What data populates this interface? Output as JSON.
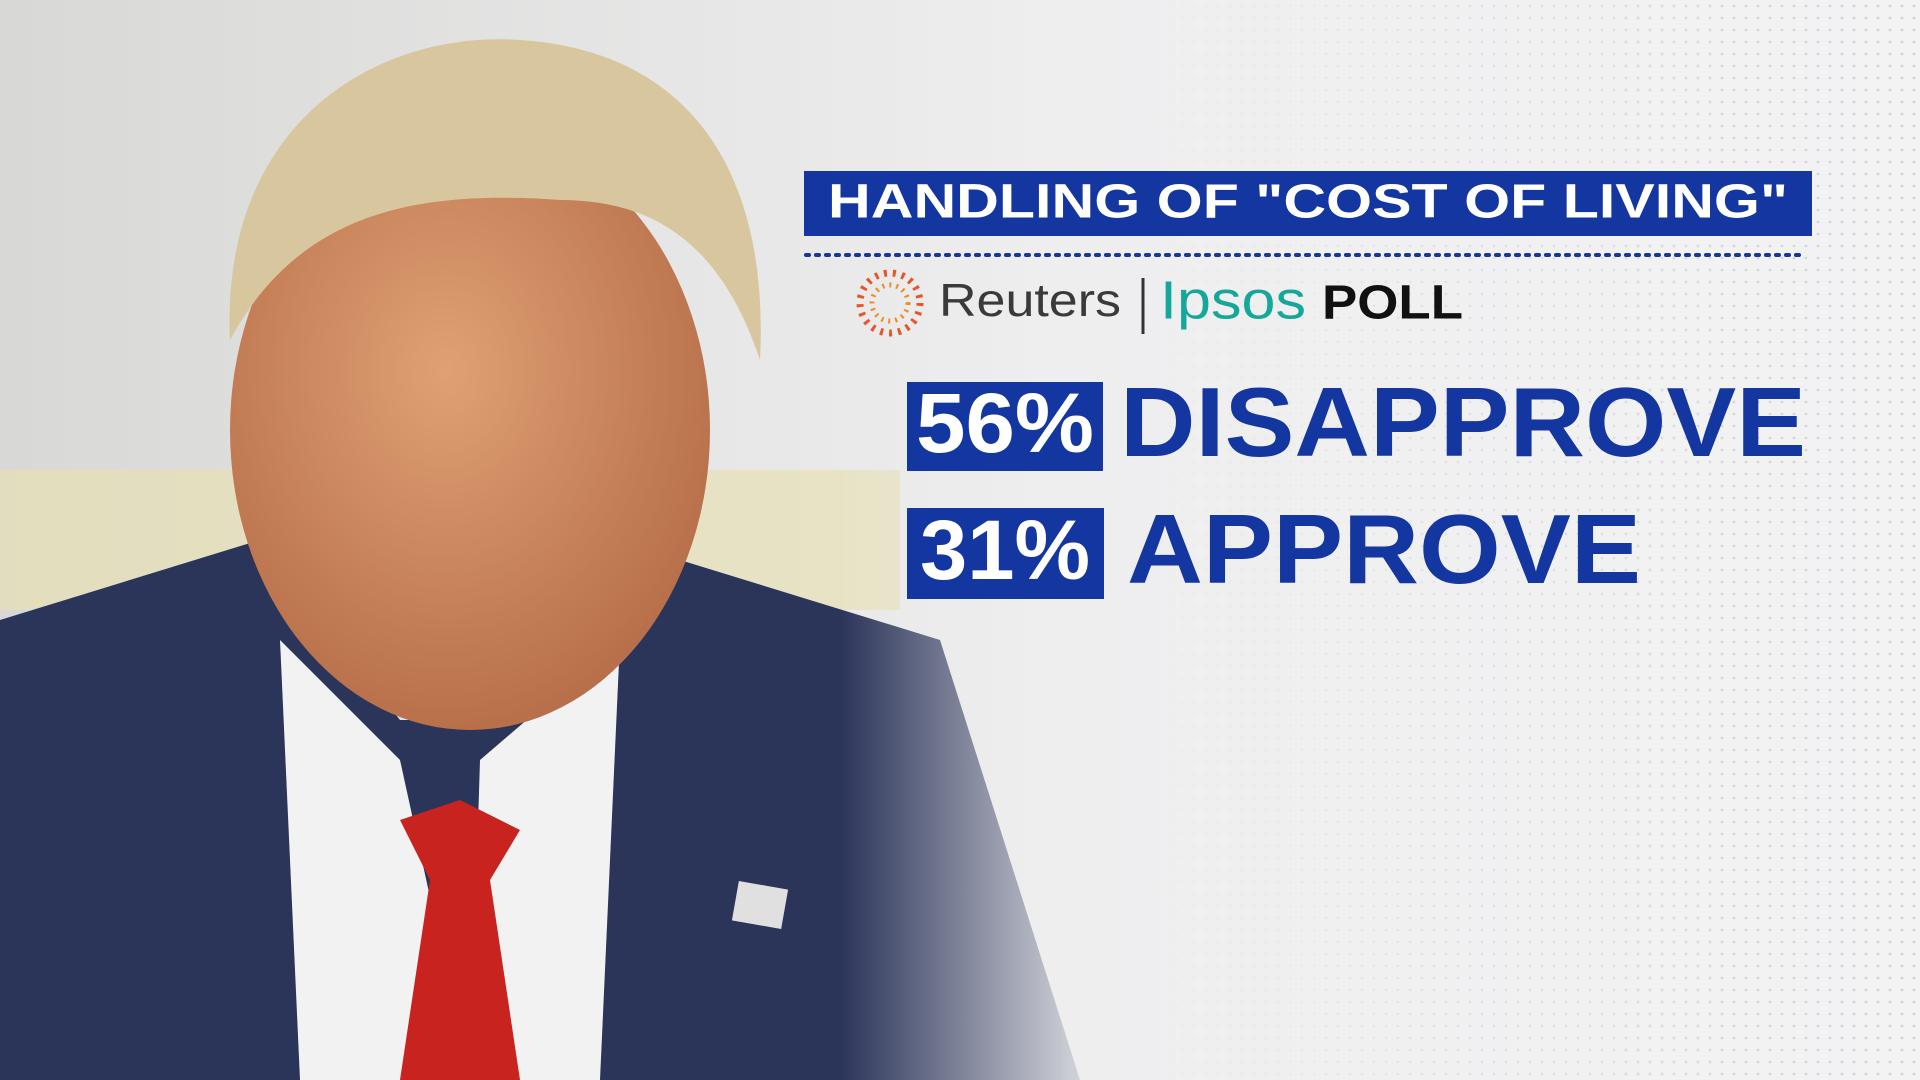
{
  "header": {
    "title": "HANDLING OF \"COST OF LIVING\""
  },
  "source": {
    "name": "Reuters",
    "partner": "Ipsos",
    "label": "POLL"
  },
  "results": [
    {
      "value": "56%",
      "label": "DISAPPROVE"
    },
    {
      "value": "31%",
      "label": "APPROVE"
    }
  ]
}
